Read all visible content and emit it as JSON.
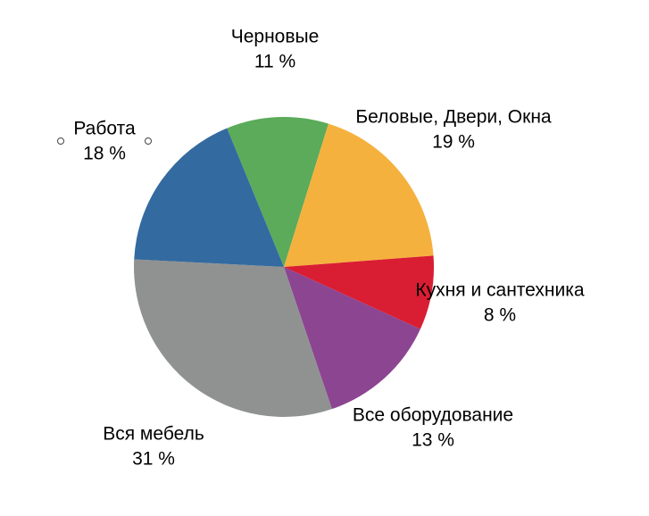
{
  "chart_data": {
    "type": "pie",
    "categories": [
      "Черновые",
      "Беловые, Двери, Окна",
      "Кухня и сантехника",
      "Все оборудование",
      "Вся мебель",
      "Работа"
    ],
    "values": [
      11,
      19,
      8,
      13,
      31,
      18
    ],
    "value_labels": [
      "11 %",
      "19 %",
      "8 %",
      "13 %",
      "31 %",
      "18 %"
    ],
    "colors": [
      "#5bab5a",
      "#f5b13d",
      "#d91e33",
      "#8c4591",
      "#909291",
      "#336aa0"
    ]
  }
}
